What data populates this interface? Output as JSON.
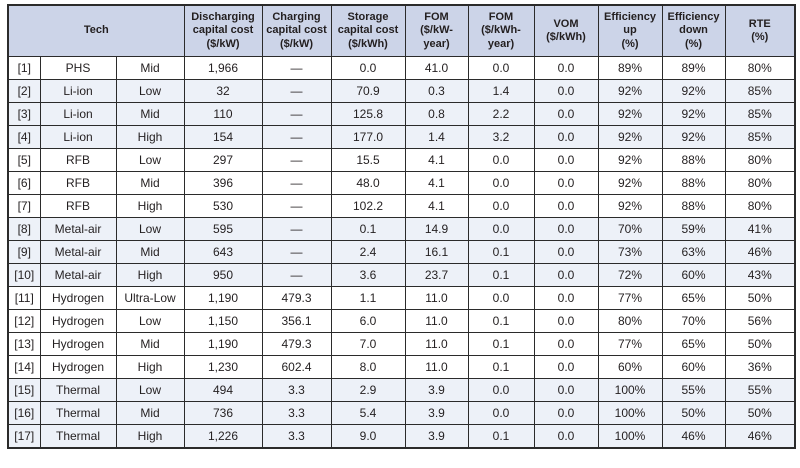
{
  "table": {
    "colors": {
      "header_bg": "#ccd4e8",
      "shaded_row_bg": "#edf1f8",
      "row_bg": "#ffffff",
      "border": "#2b2b2b",
      "text": "#231f20"
    },
    "headers": [
      {
        "label": "Tech",
        "colspan": 3
      },
      {
        "label": "Discharging\ncapital cost\n($/kW)",
        "colspan": 1
      },
      {
        "label": "Charging\ncapital cost\n($/kW)",
        "colspan": 1
      },
      {
        "label": "Storage\ncapital cost\n($/kWh)",
        "colspan": 1
      },
      {
        "label": "FOM\n($/kW-\nyear)",
        "colspan": 1
      },
      {
        "label": "FOM\n($/kWh-\nyear)",
        "colspan": 1
      },
      {
        "label": "VOM\n($/kWh)",
        "colspan": 1
      },
      {
        "label": "Efficiency\nup\n(%)",
        "colspan": 1
      },
      {
        "label": "Efficiency\ndown\n(%)",
        "colspan": 1
      },
      {
        "label": "RTE\n(%)",
        "colspan": 1
      }
    ],
    "rows": [
      {
        "ref": "[1]",
        "tech": "PHS",
        "scenario": "Mid",
        "shaded": false,
        "values": [
          "1,966",
          "—",
          "0.0",
          "41.0",
          "0.0",
          "0.0",
          "89%",
          "89%",
          "80%"
        ]
      },
      {
        "ref": "[2]",
        "tech": "Li-ion",
        "scenario": "Low",
        "shaded": true,
        "values": [
          "32",
          "—",
          "70.9",
          "0.3",
          "1.4",
          "0.0",
          "92%",
          "92%",
          "85%"
        ]
      },
      {
        "ref": "[3]",
        "tech": "Li-ion",
        "scenario": "Mid",
        "shaded": true,
        "values": [
          "110",
          "—",
          "125.8",
          "0.8",
          "2.2",
          "0.0",
          "92%",
          "92%",
          "85%"
        ]
      },
      {
        "ref": "[4]",
        "tech": "Li-ion",
        "scenario": "High",
        "shaded": true,
        "values": [
          "154",
          "—",
          "177.0",
          "1.4",
          "3.2",
          "0.0",
          "92%",
          "92%",
          "85%"
        ]
      },
      {
        "ref": "[5]",
        "tech": "RFB",
        "scenario": "Low",
        "shaded": false,
        "values": [
          "297",
          "—",
          "15.5",
          "4.1",
          "0.0",
          "0.0",
          "92%",
          "88%",
          "80%"
        ]
      },
      {
        "ref": "[6]",
        "tech": "RFB",
        "scenario": "Mid",
        "shaded": false,
        "values": [
          "396",
          "—",
          "48.0",
          "4.1",
          "0.0",
          "0.0",
          "92%",
          "88%",
          "80%"
        ]
      },
      {
        "ref": "[7]",
        "tech": "RFB",
        "scenario": "High",
        "shaded": false,
        "values": [
          "530",
          "—",
          "102.2",
          "4.1",
          "0.0",
          "0.0",
          "92%",
          "88%",
          "80%"
        ]
      },
      {
        "ref": "[8]",
        "tech": "Metal-air",
        "scenario": "Low",
        "shaded": true,
        "values": [
          "595",
          "—",
          "0.1",
          "14.9",
          "0.0",
          "0.0",
          "70%",
          "59%",
          "41%"
        ]
      },
      {
        "ref": "[9]",
        "tech": "Metal-air",
        "scenario": "Mid",
        "shaded": true,
        "values": [
          "643",
          "—",
          "2.4",
          "16.1",
          "0.1",
          "0.0",
          "73%",
          "63%",
          "46%"
        ]
      },
      {
        "ref": "[10]",
        "tech": "Metal-air",
        "scenario": "High",
        "shaded": true,
        "values": [
          "950",
          "—",
          "3.6",
          "23.7",
          "0.1",
          "0.0",
          "72%",
          "60%",
          "43%"
        ]
      },
      {
        "ref": "[11]",
        "tech": "Hydrogen",
        "scenario": "Ultra-Low",
        "shaded": false,
        "values": [
          "1,190",
          "479.3",
          "1.1",
          "11.0",
          "0.0",
          "0.0",
          "77%",
          "65%",
          "50%"
        ]
      },
      {
        "ref": "[12]",
        "tech": "Hydrogen",
        "scenario": "Low",
        "shaded": false,
        "values": [
          "1,150",
          "356.1",
          "6.0",
          "11.0",
          "0.1",
          "0.0",
          "80%",
          "70%",
          "56%"
        ]
      },
      {
        "ref": "[13]",
        "tech": "Hydrogen",
        "scenario": "Mid",
        "shaded": false,
        "values": [
          "1,190",
          "479.3",
          "7.0",
          "11.0",
          "0.1",
          "0.0",
          "77%",
          "65%",
          "50%"
        ]
      },
      {
        "ref": "[14]",
        "tech": "Hydrogen",
        "scenario": "High",
        "shaded": false,
        "values": [
          "1,230",
          "602.4",
          "8.0",
          "11.0",
          "0.1",
          "0.0",
          "60%",
          "60%",
          "36%"
        ]
      },
      {
        "ref": "[15]",
        "tech": "Thermal",
        "scenario": "Low",
        "shaded": true,
        "values": [
          "494",
          "3.3",
          "2.9",
          "3.9",
          "0.0",
          "0.0",
          "100%",
          "55%",
          "55%"
        ]
      },
      {
        "ref": "[16]",
        "tech": "Thermal",
        "scenario": "Mid",
        "shaded": true,
        "values": [
          "736",
          "3.3",
          "5.4",
          "3.9",
          "0.0",
          "0.0",
          "100%",
          "50%",
          "50%"
        ]
      },
      {
        "ref": "[17]",
        "tech": "Thermal",
        "scenario": "High",
        "shaded": true,
        "values": [
          "1,226",
          "3.3",
          "9.0",
          "3.9",
          "0.1",
          "0.0",
          "100%",
          "46%",
          "46%"
        ]
      }
    ],
    "cell_names": [
      "row-ref",
      "tech-name",
      "scenario-level",
      "discharging-capital-cost",
      "charging-capital-cost",
      "storage-capital-cost",
      "fom-kw-year",
      "fom-kwh-year",
      "vom",
      "efficiency-up",
      "efficiency-down",
      "rte"
    ],
    "header_names": [
      "tech",
      "discharging-capital-cost",
      "charging-capital-cost",
      "storage-capital-cost",
      "fom-kw-year",
      "fom-kwh-year",
      "vom",
      "efficiency-up",
      "efficiency-down",
      "rte"
    ]
  }
}
